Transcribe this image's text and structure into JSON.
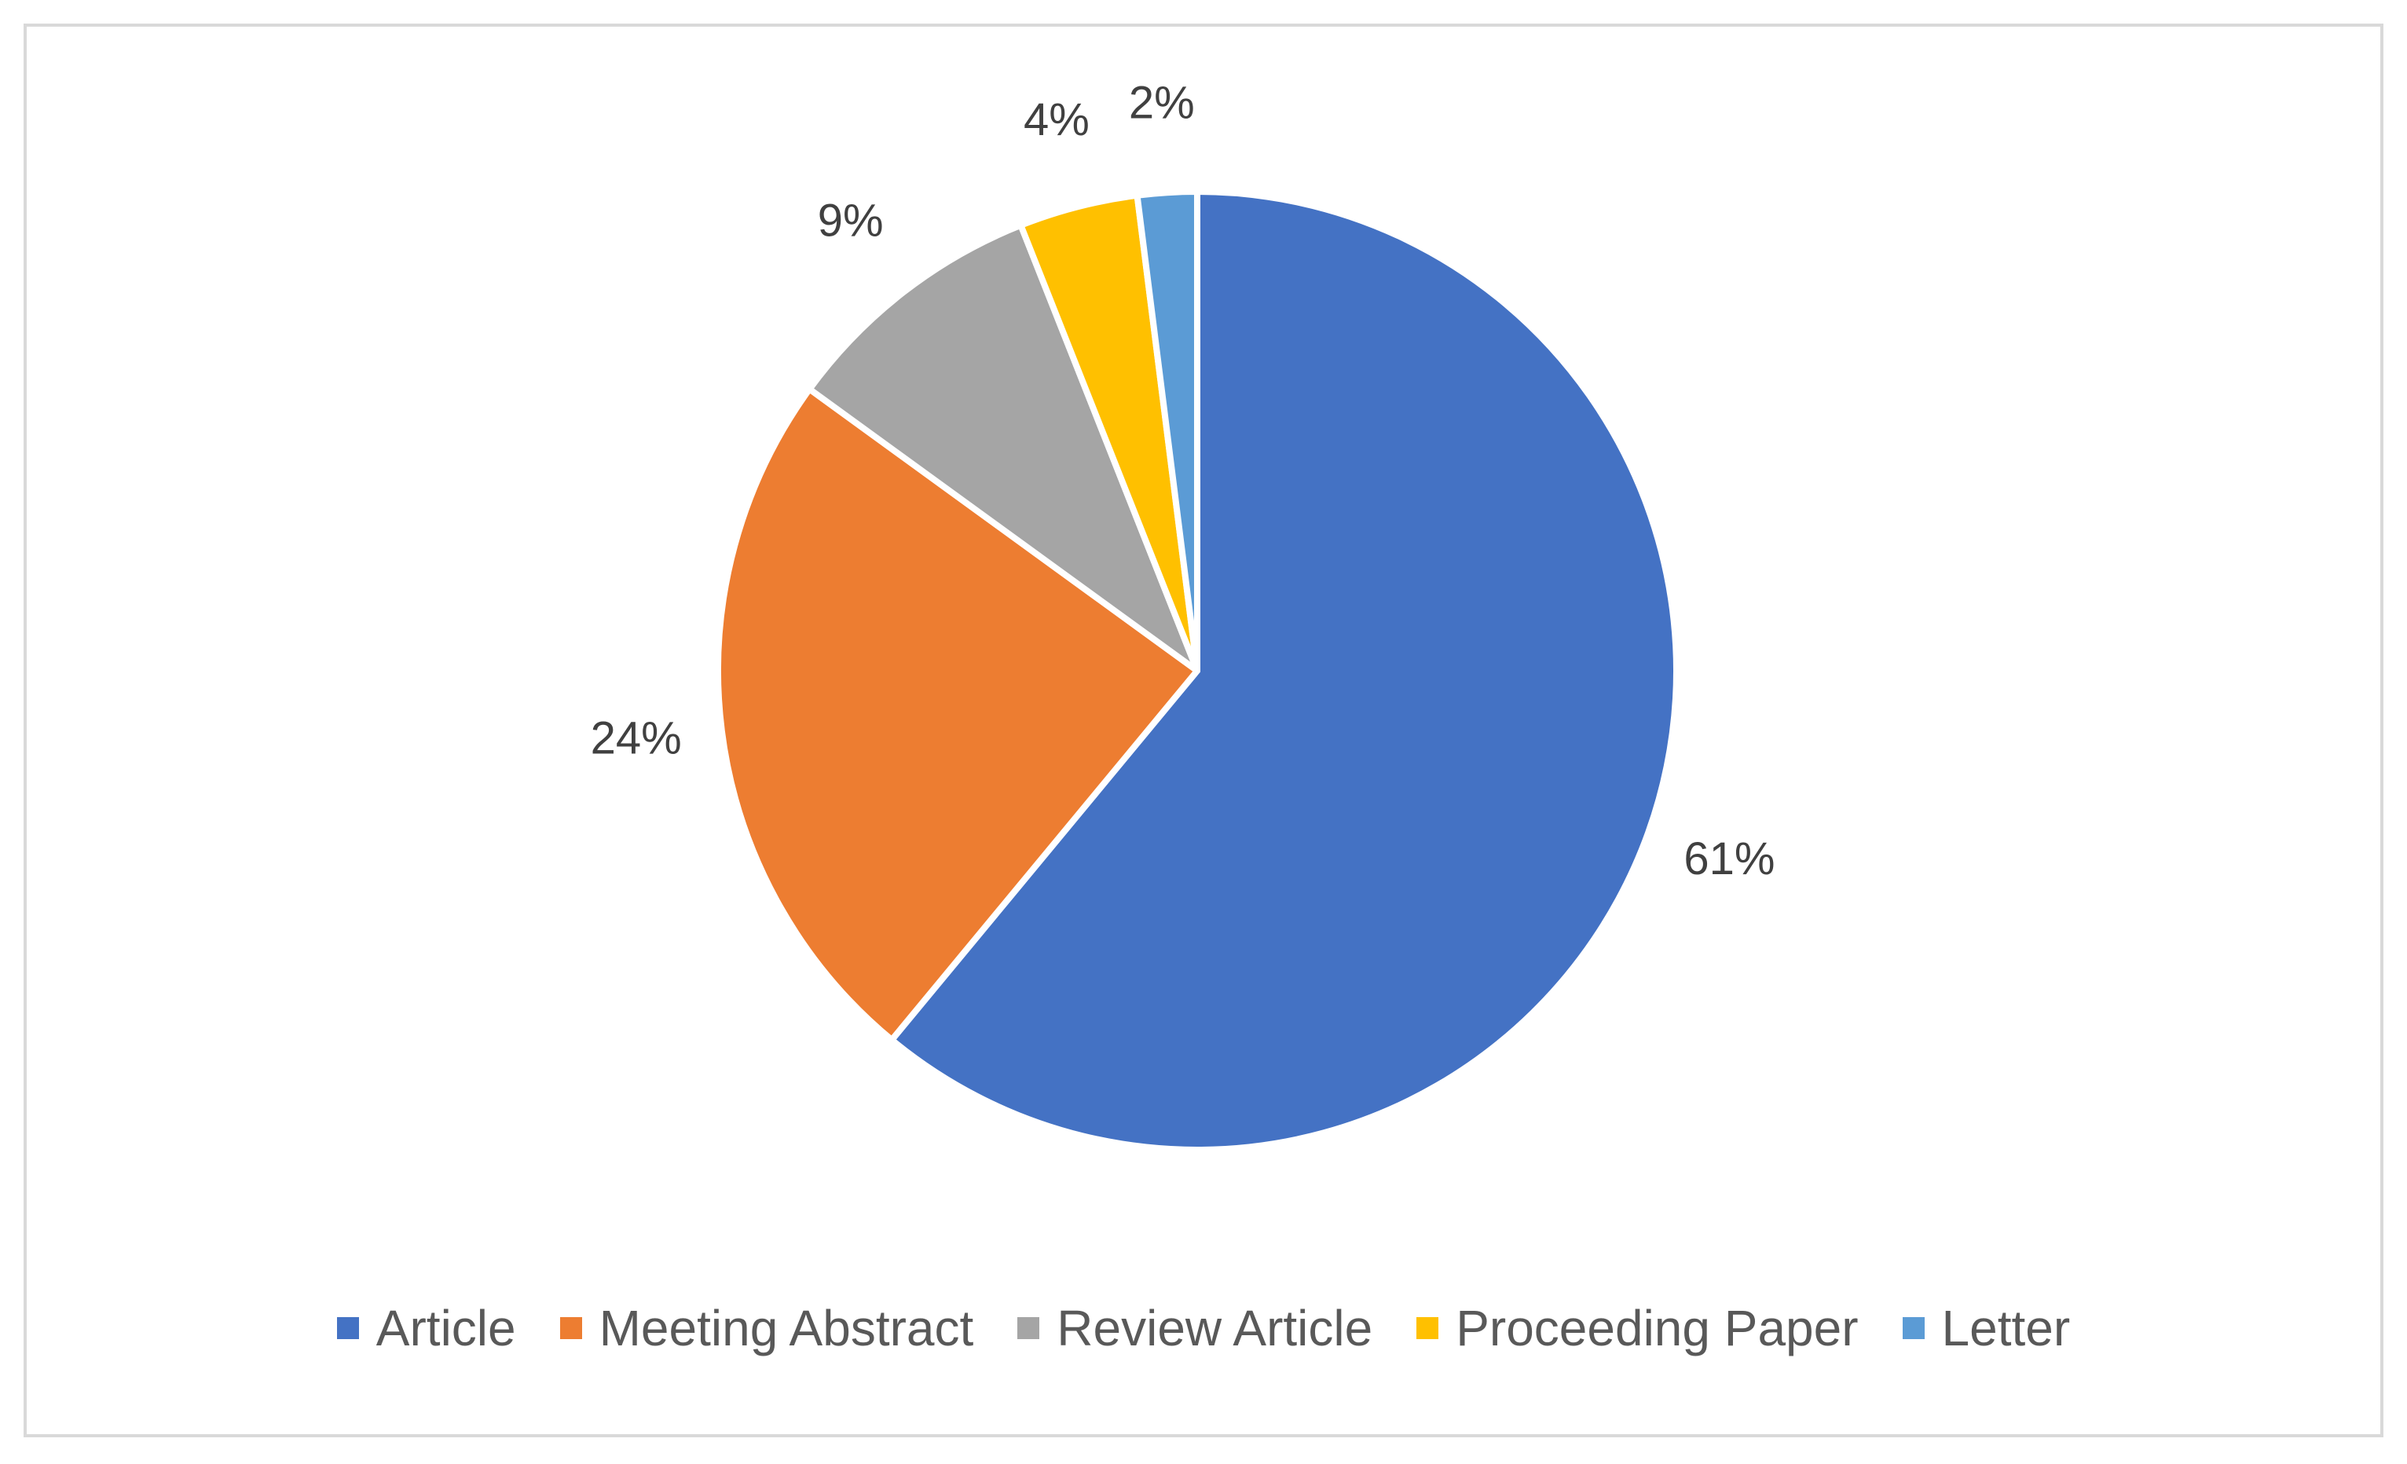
{
  "chart_data": {
    "type": "pie",
    "categories": [
      "Article",
      "Meeting Abstract",
      "Review Article",
      "Proceeding Paper",
      "Letter"
    ],
    "values": [
      61,
      24,
      9,
      4,
      2
    ],
    "labels": [
      "61%",
      "24%",
      "9%",
      "4%",
      "2%"
    ],
    "colors": [
      "#4472C4",
      "#ED7D31",
      "#A5A5A5",
      "#FFC000",
      "#5B9BD5"
    ],
    "legend_position": "bottom",
    "title": ""
  }
}
